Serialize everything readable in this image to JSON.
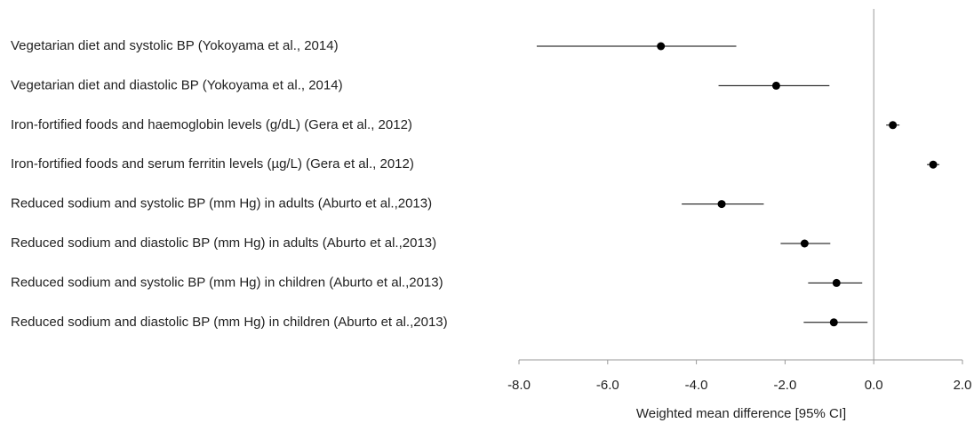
{
  "chart_data": {
    "type": "forest",
    "xlabel": "Weighted mean difference [95% CI]",
    "categories": [
      "Vegetarian diet and systolic BP (Yokoyama et al., 2014)",
      "Vegetarian diet and diastolic BP (Yokoyama et al., 2014)",
      "Iron-fortified foods and haemoglobin levels (g/dL) (Gera et al., 2012)",
      "Iron-fortified foods and serum ferritin levels (µg/L) (Gera et al., 2012)",
      "Reduced sodium and systolic BP (mm Hg) in adults (Aburto et al.,2013)",
      "Reduced sodium and diastolic BP (mm Hg) in adults (Aburto et al.,2013)",
      "Reduced sodium and systolic BP (mm Hg) in children (Aburto et al.,2013)",
      "Reduced sodium and diastolic BP (mm Hg) in children (Aburto et al.,2013)"
    ],
    "values": [
      -4.8,
      -2.2,
      0.43,
      1.34,
      -3.43,
      -1.56,
      -0.84,
      -0.9
    ],
    "ci_low": [
      -7.6,
      -3.5,
      0.28,
      1.2,
      -4.33,
      -2.1,
      -1.48,
      -1.58
    ],
    "ci_high": [
      -3.1,
      -1.0,
      0.58,
      1.48,
      -2.48,
      -0.98,
      -0.26,
      -0.14
    ],
    "color": "#000000",
    "xlim": [
      -8,
      2
    ],
    "xticks": [
      {
        "value": -8,
        "label": "-8.0"
      },
      {
        "value": -6,
        "label": "-6.0"
      },
      {
        "value": -4,
        "label": "-4.0"
      },
      {
        "value": -2,
        "label": "-2.0"
      },
      {
        "value": 0,
        "label": "0.0"
      },
      {
        "value": 2,
        "label": "2.0"
      }
    ]
  }
}
